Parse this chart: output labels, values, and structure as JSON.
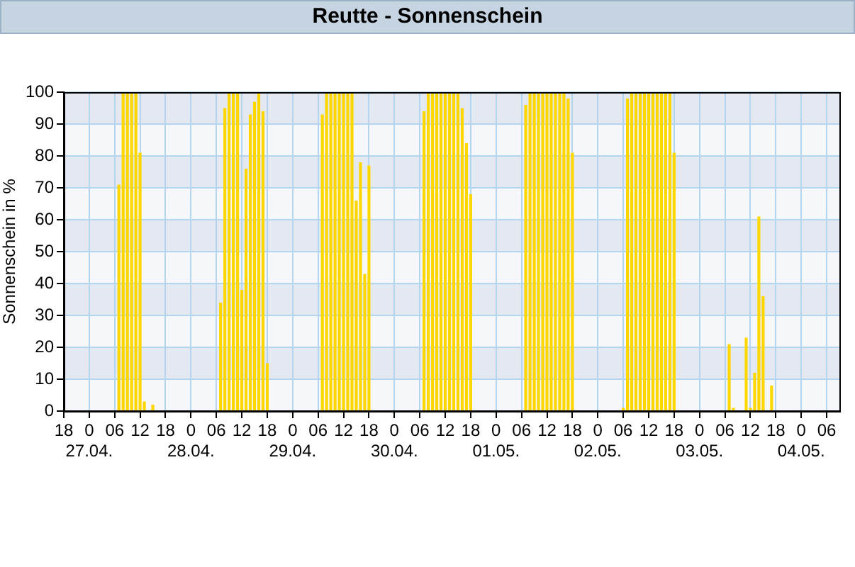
{
  "chart_data": {
    "type": "bar",
    "title": "Reutte - Sonnenschein",
    "ylabel": "Sonnenschein in %",
    "x": [
      "--04-27T07:00",
      "--04-27T08:00",
      "--04-27T09:00",
      "--04-27T10:00",
      "--04-27T11:00",
      "--04-27T12:00",
      "--04-27T13:00",
      "--04-27T15:00",
      "--04-28T07:00",
      "--04-28T08:00",
      "--04-28T09:00",
      "--04-28T10:00",
      "--04-28T11:00",
      "--04-28T12:00",
      "--04-28T13:00",
      "--04-28T14:00",
      "--04-28T15:00",
      "--04-28T16:00",
      "--04-28T17:00",
      "--04-28T18:00",
      "--04-29T07:00",
      "--04-29T08:00",
      "--04-29T09:00",
      "--04-29T10:00",
      "--04-29T11:00",
      "--04-29T12:00",
      "--04-29T13:00",
      "--04-29T14:00",
      "--04-29T15:00",
      "--04-29T16:00",
      "--04-29T17:00",
      "--04-29T18:00",
      "--04-30T07:00",
      "--04-30T08:00",
      "--04-30T09:00",
      "--04-30T10:00",
      "--04-30T11:00",
      "--04-30T12:00",
      "--04-30T13:00",
      "--04-30T14:00",
      "--04-30T15:00",
      "--04-30T16:00",
      "--04-30T17:00",
      "--04-30T18:00",
      "--05-01T07:00",
      "--05-01T08:00",
      "--05-01T09:00",
      "--05-01T10:00",
      "--05-01T11:00",
      "--05-01T12:00",
      "--05-01T13:00",
      "--05-01T14:00",
      "--05-01T15:00",
      "--05-01T16:00",
      "--05-01T17:00",
      "--05-01T18:00",
      "--05-02T06:00",
      "--05-02T07:00",
      "--05-02T08:00",
      "--05-02T09:00",
      "--05-02T10:00",
      "--05-02T11:00",
      "--05-02T12:00",
      "--05-02T13:00",
      "--05-02T14:00",
      "--05-02T15:00",
      "--05-02T16:00",
      "--05-02T17:00",
      "--05-02T18:00",
      "--05-03T07:00",
      "--05-03T08:00",
      "--05-03T11:00",
      "--05-03T12:00",
      "--05-03T13:00",
      "--05-03T14:00",
      "--05-03T15:00",
      "--05-03T17:00"
    ],
    "values": [
      71,
      100,
      100,
      100,
      100,
      81,
      3,
      2,
      34,
      95,
      100,
      100,
      100,
      38,
      76,
      93,
      97,
      100,
      94,
      15,
      93,
      100,
      100,
      100,
      100,
      100,
      100,
      100,
      66,
      78,
      43,
      77,
      94,
      100,
      100,
      100,
      100,
      100,
      100,
      100,
      100,
      95,
      84,
      68,
      96,
      100,
      100,
      100,
      100,
      100,
      100,
      100,
      100,
      100,
      98,
      81,
      1,
      98,
      100,
      100,
      100,
      100,
      100,
      100,
      100,
      100,
      100,
      100,
      81,
      21,
      1,
      23,
      1,
      12,
      61,
      36,
      8
    ],
    "color": "#ffd700",
    "xlim": [
      "--04-26T18:00",
      "--05-04T09:00"
    ],
    "xticks": [
      {
        "value": "--04-26T18:00",
        "label": "18"
      },
      {
        "value": "--04-27T00:00",
        "label": "0\n27.04."
      },
      {
        "value": "--04-27T06:00",
        "label": "06"
      },
      {
        "value": "--04-27T12:00",
        "label": "12"
      },
      {
        "value": "--04-27T18:00",
        "label": "18"
      },
      {
        "value": "--04-28T00:00",
        "label": "0\n28.04."
      },
      {
        "value": "--04-28T06:00",
        "label": "06"
      },
      {
        "value": "--04-28T12:00",
        "label": "12"
      },
      {
        "value": "--04-28T18:00",
        "label": "18"
      },
      {
        "value": "--04-29T00:00",
        "label": "0\n29.04."
      },
      {
        "value": "--04-29T06:00",
        "label": "06"
      },
      {
        "value": "--04-29T12:00",
        "label": "12"
      },
      {
        "value": "--04-29T18:00",
        "label": "18"
      },
      {
        "value": "--04-30T00:00",
        "label": "0\n30.04."
      },
      {
        "value": "--04-30T06:00",
        "label": "06"
      },
      {
        "value": "--04-30T12:00",
        "label": "12"
      },
      {
        "value": "--04-30T18:00",
        "label": "18"
      },
      {
        "value": "--05-01T00:00",
        "label": "0\n01.05."
      },
      {
        "value": "--05-01T06:00",
        "label": "06"
      },
      {
        "value": "--05-01T12:00",
        "label": "12"
      },
      {
        "value": "--05-01T18:00",
        "label": "18"
      },
      {
        "value": "--05-02T00:00",
        "label": "0\n02.05."
      },
      {
        "value": "--05-02T06:00",
        "label": "06"
      },
      {
        "value": "--05-02T12:00",
        "label": "12"
      },
      {
        "value": "--05-02T18:00",
        "label": "18"
      },
      {
        "value": "--05-03T00:00",
        "label": "0\n03.05."
      },
      {
        "value": "--05-03T06:00",
        "label": "06"
      },
      {
        "value": "--05-03T12:00",
        "label": "12"
      },
      {
        "value": "--05-03T18:00",
        "label": "18"
      },
      {
        "value": "--05-04T00:00",
        "label": "0\n04.05."
      },
      {
        "value": "--05-04T06:00",
        "label": "06"
      }
    ],
    "ylim": [
      0,
      100
    ],
    "yticks": [
      0,
      10,
      20,
      30,
      40,
      50,
      60,
      70,
      80,
      90,
      100
    ],
    "bands": [
      {
        "axis": "y",
        "from": 10,
        "to": 20,
        "color": "#e4e9f1"
      },
      {
        "axis": "y",
        "from": 30,
        "to": 40,
        "color": "#e4e9f1"
      },
      {
        "axis": "y",
        "from": 50,
        "to": 60,
        "color": "#e4e9f1"
      },
      {
        "axis": "y",
        "from": 70,
        "to": 80,
        "color": "#e4e9f1"
      },
      {
        "axis": "y",
        "from": 90,
        "to": 100,
        "color": "#e4e9f1"
      }
    ],
    "grid": true
  }
}
